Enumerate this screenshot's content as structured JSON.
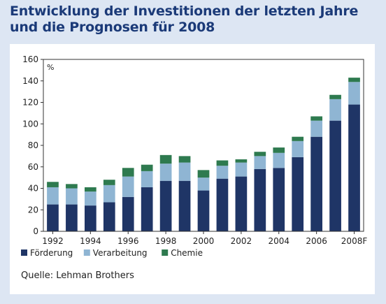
{
  "title": "Entwicklung der Investitionen der letzten Jahre und die Prognosen für 2008",
  "source": "Quelle: Lehman Brothers",
  "chart_data": {
    "type": "bar",
    "stacked": true,
    "unit": "%",
    "categories": [
      "1992",
      "1993",
      "1994",
      "1995",
      "1996",
      "1997",
      "1998",
      "1999",
      "2000",
      "2001",
      "2002",
      "2003",
      "2004",
      "2005",
      "2006",
      "2007",
      "2008F"
    ],
    "tick_labels": [
      "1992",
      "1994",
      "1996",
      "1998",
      "2000",
      "2002",
      "2004",
      "2006",
      "2008F"
    ],
    "series": [
      {
        "name": "Förderung",
        "color": "#1f3566",
        "values": [
          25,
          25,
          24,
          27,
          32,
          41,
          47,
          47,
          38,
          49,
          51,
          58,
          59,
          69,
          88,
          103,
          118
        ]
      },
      {
        "name": "Verarbeitung",
        "color": "#8fb5d3",
        "values": [
          16,
          15,
          13,
          16,
          19,
          15,
          16,
          17,
          12,
          12,
          13,
          12,
          14,
          15,
          15,
          20,
          21
        ]
      },
      {
        "name": "Chemie",
        "color": "#2e7a4f",
        "values": [
          5,
          4,
          4,
          5,
          8,
          6,
          8,
          6,
          7,
          5,
          3,
          4,
          5,
          4,
          4,
          4,
          4
        ]
      }
    ],
    "ylim": [
      0,
      160
    ],
    "yticks": [
      0,
      20,
      40,
      60,
      80,
      100,
      120,
      140,
      160
    ],
    "grid": false,
    "legend_position": "bottom-left"
  }
}
